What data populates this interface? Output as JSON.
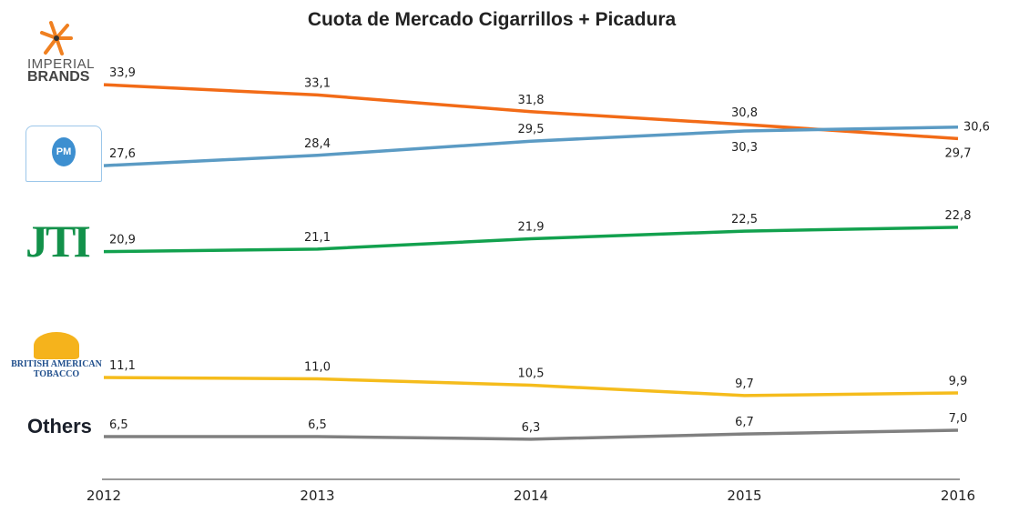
{
  "chart_data": {
    "type": "line",
    "title": "Cuota de Mercado Cigarrillos + Picadura",
    "categories": [
      "2012",
      "2013",
      "2014",
      "2015",
      "2016"
    ],
    "series": [
      {
        "name": "IMPERIAL BRANDS",
        "color": "#F26B17",
        "values": [
          33.9,
          33.1,
          31.8,
          30.8,
          29.7
        ],
        "labels": [
          "33,9",
          "33,1",
          "31,8",
          "30,8",
          "29,7"
        ]
      },
      {
        "name": "Philip Morris",
        "color": "#5B9BC4",
        "values": [
          27.6,
          28.4,
          29.5,
          30.3,
          30.6
        ],
        "labels": [
          "27,6",
          "28,4",
          "29,5",
          "30,3",
          "30,6"
        ]
      },
      {
        "name": "JTI",
        "color": "#12A14E",
        "values": [
          20.9,
          21.1,
          21.9,
          22.5,
          22.8
        ],
        "labels": [
          "20,9",
          "21,1",
          "21,9",
          "22,5",
          "22,8"
        ]
      },
      {
        "name": "BRITISH AMERICAN TOBACCO",
        "color": "#F5BC1C",
        "values": [
          11.1,
          11.0,
          10.5,
          9.7,
          9.9
        ],
        "labels": [
          "11,1",
          "11,0",
          "10,5",
          "9,7",
          "9,9"
        ]
      },
      {
        "name": "Others",
        "color": "#808080",
        "values": [
          6.5,
          6.5,
          6.3,
          6.7,
          7.0
        ],
        "labels": [
          "6,5",
          "6,5",
          "6,3",
          "6,7",
          "7,0"
        ]
      }
    ],
    "grid": false,
    "legend": "left (logos)"
  },
  "logos": {
    "imperial_line1": "IMPERIAL",
    "imperial_line2": "BRANDS",
    "pm": "PM",
    "jti": "JTI",
    "bat_line1": "BRITISH AMERICAN",
    "bat_line2": "TOBACCO",
    "others": "Others"
  }
}
